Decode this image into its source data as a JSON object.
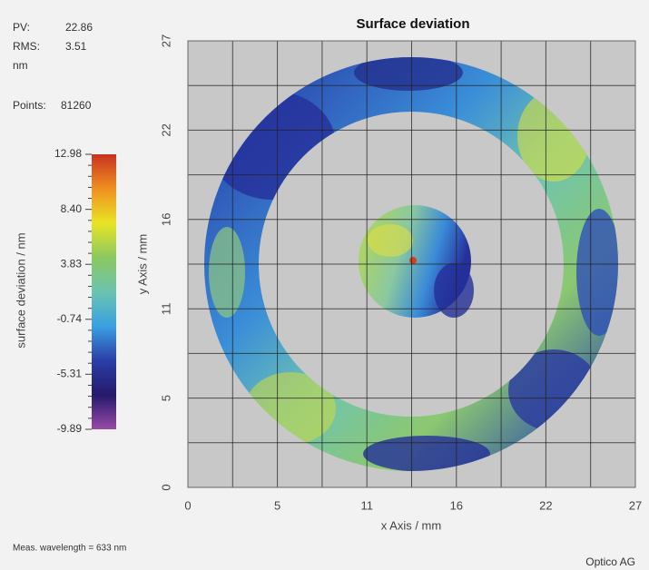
{
  "stats": {
    "pv_label": "PV:",
    "pv": 22.86,
    "rms_label": "RMS:",
    "rms": 3.51,
    "unit": "nm",
    "points_label": "Points:",
    "points": 81260
  },
  "footer": {
    "wavelength": "Meas. wavelength = 633 nm",
    "company": "Optico AG"
  },
  "chart_data": {
    "type": "heatmap",
    "title": "Surface deviation",
    "xlabel": "x Axis / mm",
    "ylabel": "y Axis / mm",
    "xlim": [
      0,
      27
    ],
    "ylim": [
      0,
      27
    ],
    "xticks": [
      0,
      {
        "value": 5.4,
        "label": "5"
      },
      {
        "value": 10.8,
        "label": "11"
      },
      {
        "value": 16.2,
        "label": "16"
      },
      {
        "value": 21.6,
        "label": "22"
      },
      27
    ],
    "yticks": [
      0,
      {
        "value": 5.4,
        "label": "5"
      },
      {
        "value": 10.8,
        "label": "11"
      },
      {
        "value": 16.2,
        "label": "16"
      },
      {
        "value": 21.6,
        "label": "22"
      },
      27
    ],
    "grid": true,
    "colorbar": {
      "label": "surface deviation / nm",
      "lim": [
        -9.89,
        12.98
      ],
      "ticks": [
        -9.89,
        -5.31,
        -0.74,
        3.83,
        8.4,
        12.98
      ],
      "tick_labels": [
        "-9.89",
        "-5.31",
        "-0.74",
        "3.83",
        "8.40",
        "12.98"
      ],
      "colors": [
        "#9a4aa8",
        "#241a6a",
        "#2a3ea8",
        "#3aa0e0",
        "#6cc4b0",
        "#8cc860",
        "#e8e424",
        "#f09020",
        "#c83222"
      ]
    }
  }
}
